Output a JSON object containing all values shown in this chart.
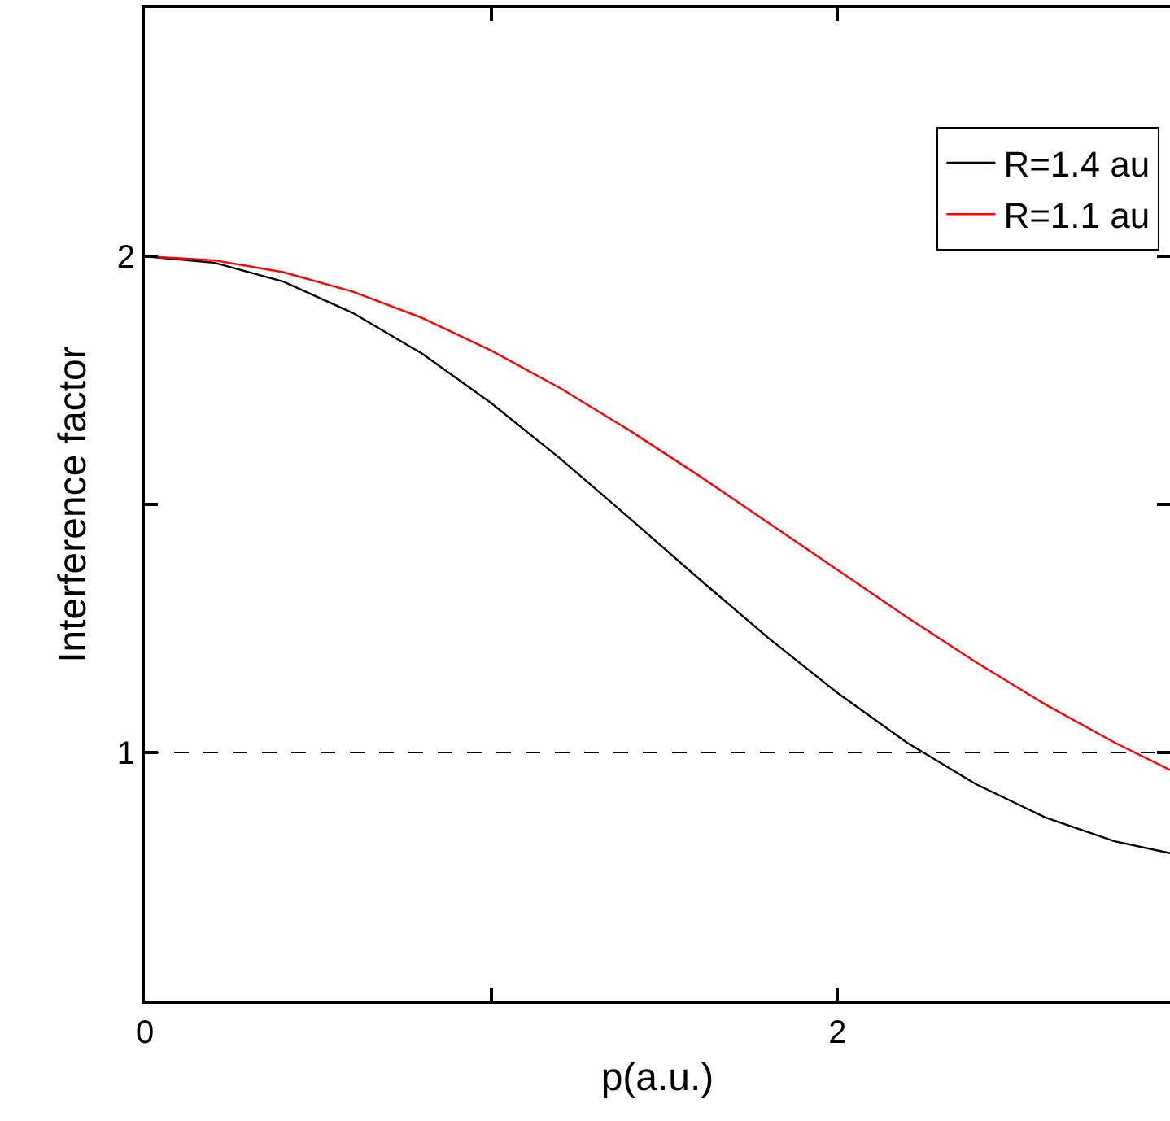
{
  "chart_data": {
    "type": "line",
    "xlabel": "p(a.u.)",
    "ylabel": "Interference factor",
    "x": [
      0,
      0.2,
      0.4,
      0.6,
      0.8,
      1.0,
      1.2,
      1.4,
      1.6,
      1.8,
      2.0,
      2.2,
      2.4,
      2.6,
      2.8,
      2.96
    ],
    "series": [
      {
        "name": "R=1.4 au",
        "color": "#000000",
        "values": [
          2,
          1.987,
          1.949,
          1.886,
          1.804,
          1.704,
          1.592,
          1.472,
          1.35,
          1.231,
          1.12,
          1.02,
          0.936,
          0.869,
          0.821,
          0.797
        ]
      },
      {
        "name": "R=1.1 au",
        "color": "#ff0000",
        "values": [
          2,
          1.992,
          1.968,
          1.929,
          1.876,
          1.81,
          1.734,
          1.649,
          1.558,
          1.463,
          1.368,
          1.273,
          1.182,
          1.097,
          1.02,
          0.965
        ]
      }
    ],
    "xlim": [
      0,
      2.96
    ],
    "xticks": [
      0,
      {
        "value": 1,
        "label": null
      },
      2
    ],
    "ylim": [
      0.5,
      2.5
    ],
    "yticks": [
      1,
      {
        "value": 1.5,
        "label": null
      },
      2
    ],
    "ref_lines": [
      {
        "axis": "y",
        "value": 1,
        "color": "#000000",
        "line_style": "dashed"
      }
    ],
    "grid": false,
    "legend": "top right",
    "marker": "none",
    "line_style": "solid"
  }
}
